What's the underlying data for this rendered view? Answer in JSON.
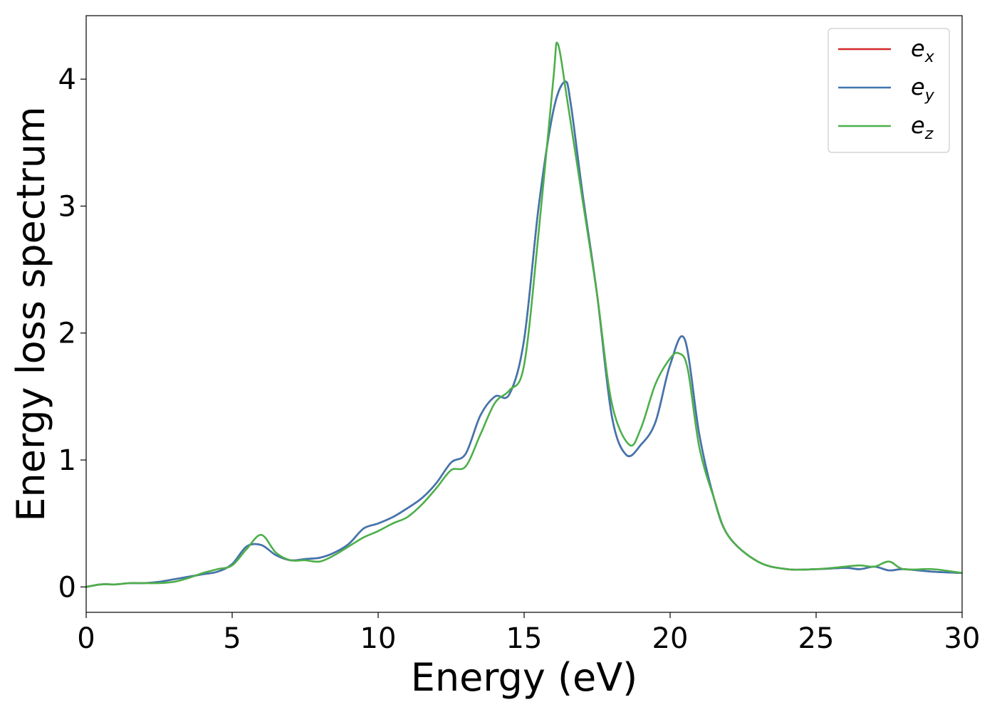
{
  "chart_data": {
    "type": "line",
    "title": "",
    "xlabel": "Energy (eV)",
    "ylabel": "Energy loss spectrum",
    "xlim": [
      0,
      30
    ],
    "ylim": [
      -0.2,
      4.5
    ],
    "xticks": [
      0,
      5,
      10,
      15,
      20,
      25,
      30
    ],
    "xtick_labels": [
      "0",
      "5",
      "10",
      "15",
      "20",
      "25",
      "30"
    ],
    "yticks": [
      0,
      1,
      2,
      3,
      4
    ],
    "ytick_labels": [
      "0",
      "1",
      "2",
      "3",
      "4"
    ],
    "grid": false,
    "legend_position": "top-right",
    "series": [
      {
        "name": "e_x",
        "legend_base": "e",
        "legend_sub": "x",
        "color": "#d62728",
        "x": [
          0,
          0.5,
          1,
          1.5,
          2,
          2.5,
          3,
          3.5,
          4,
          4.5,
          5,
          5.5,
          6,
          6.5,
          7,
          7.5,
          8,
          8.5,
          9,
          9.5,
          10,
          10.5,
          11,
          11.5,
          12,
          12.5,
          13,
          13.5,
          14,
          14.5,
          15,
          15.5,
          16,
          16.4,
          16.6,
          17,
          17.5,
          18,
          18.5,
          19,
          19.5,
          20,
          20.5,
          21,
          21.5,
          22,
          23,
          24,
          25,
          26,
          26.5,
          27,
          27.5,
          28,
          29,
          30
        ],
        "y": [
          0,
          0.02,
          0.02,
          0.03,
          0.03,
          0.04,
          0.06,
          0.08,
          0.1,
          0.12,
          0.18,
          0.32,
          0.33,
          0.25,
          0.21,
          0.22,
          0.23,
          0.27,
          0.34,
          0.46,
          0.5,
          0.55,
          0.62,
          0.7,
          0.82,
          0.98,
          1.05,
          1.35,
          1.5,
          1.52,
          1.95,
          3.0,
          3.75,
          3.98,
          3.8,
          3.1,
          2.3,
          1.35,
          1.04,
          1.12,
          1.3,
          1.75,
          1.95,
          1.2,
          0.7,
          0.4,
          0.2,
          0.14,
          0.14,
          0.15,
          0.14,
          0.16,
          0.13,
          0.14,
          0.12,
          0.11
        ]
      },
      {
        "name": "e_y",
        "legend_base": "e",
        "legend_sub": "y",
        "color": "#3f77b0",
        "x": [
          0,
          0.5,
          1,
          1.5,
          2,
          2.5,
          3,
          3.5,
          4,
          4.5,
          5,
          5.5,
          6,
          6.5,
          7,
          7.5,
          8,
          8.5,
          9,
          9.5,
          10,
          10.5,
          11,
          11.5,
          12,
          12.5,
          13,
          13.5,
          14,
          14.5,
          15,
          15.5,
          16,
          16.4,
          16.6,
          17,
          17.5,
          18,
          18.5,
          19,
          19.5,
          20,
          20.5,
          21,
          21.5,
          22,
          23,
          24,
          25,
          26,
          26.5,
          27,
          27.5,
          28,
          29,
          30
        ],
        "y": [
          0,
          0.02,
          0.02,
          0.03,
          0.03,
          0.04,
          0.06,
          0.08,
          0.1,
          0.12,
          0.18,
          0.32,
          0.33,
          0.25,
          0.21,
          0.22,
          0.23,
          0.27,
          0.34,
          0.46,
          0.5,
          0.55,
          0.62,
          0.7,
          0.82,
          0.98,
          1.05,
          1.35,
          1.5,
          1.52,
          1.95,
          3.0,
          3.75,
          3.98,
          3.8,
          3.1,
          2.3,
          1.35,
          1.04,
          1.12,
          1.3,
          1.75,
          1.95,
          1.2,
          0.7,
          0.4,
          0.2,
          0.14,
          0.14,
          0.15,
          0.14,
          0.16,
          0.13,
          0.14,
          0.12,
          0.11
        ]
      },
      {
        "name": "e_z",
        "legend_base": "e",
        "legend_sub": "z",
        "color": "#4daf4a",
        "x": [
          0,
          0.5,
          1,
          1.5,
          2,
          2.5,
          3,
          3.5,
          4,
          4.5,
          5,
          5.5,
          6,
          6.5,
          7,
          7.5,
          8,
          8.5,
          9,
          9.5,
          10,
          10.5,
          11,
          11.5,
          12,
          12.5,
          13,
          13.5,
          14,
          14.5,
          15,
          15.5,
          16,
          16.15,
          16.5,
          17,
          17.5,
          18,
          18.6,
          19,
          19.5,
          20,
          20.3,
          20.6,
          21,
          21.5,
          22,
          23,
          24,
          25,
          26,
          26.5,
          27,
          27.5,
          28,
          29,
          30
        ],
        "y": [
          0,
          0.02,
          0.02,
          0.03,
          0.03,
          0.03,
          0.04,
          0.07,
          0.11,
          0.14,
          0.17,
          0.3,
          0.41,
          0.27,
          0.21,
          0.21,
          0.2,
          0.25,
          0.32,
          0.39,
          0.44,
          0.5,
          0.55,
          0.65,
          0.78,
          0.92,
          0.95,
          1.2,
          1.45,
          1.55,
          1.75,
          2.8,
          4.0,
          4.28,
          3.8,
          3.05,
          2.3,
          1.45,
          1.12,
          1.25,
          1.6,
          1.8,
          1.84,
          1.72,
          1.1,
          0.7,
          0.4,
          0.2,
          0.14,
          0.14,
          0.16,
          0.17,
          0.16,
          0.2,
          0.14,
          0.14,
          0.11
        ]
      }
    ]
  }
}
